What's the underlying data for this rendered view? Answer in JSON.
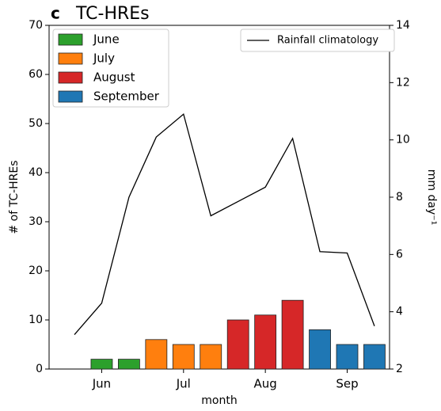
{
  "chart_data": {
    "type": "bar",
    "panel_label": "c",
    "title": "TC-HREs",
    "x_label": "month",
    "y_label": "# of TC-HREs",
    "y2_label": "mm day⁻¹",
    "categories": [
      null,
      "Jun",
      null,
      null,
      "Jul",
      null,
      null,
      "Aug",
      null,
      null,
      "Sep",
      null
    ],
    "series": [
      {
        "name": "June",
        "type": "bar",
        "color": "#2ca02c",
        "values": [
          null,
          2,
          2,
          null,
          null,
          null,
          null,
          null,
          null,
          null,
          null,
          null
        ]
      },
      {
        "name": "July",
        "type": "bar",
        "color": "#ff7f0e",
        "values": [
          null,
          null,
          null,
          6,
          5,
          5,
          null,
          null,
          null,
          null,
          null,
          null
        ]
      },
      {
        "name": "August",
        "type": "bar",
        "color": "#d62728",
        "values": [
          null,
          null,
          null,
          null,
          null,
          null,
          10,
          11,
          14,
          null,
          null,
          null
        ]
      },
      {
        "name": "September",
        "type": "bar",
        "color": "#1f77b4",
        "values": [
          null,
          null,
          null,
          null,
          null,
          null,
          null,
          null,
          null,
          8,
          5,
          5
        ]
      },
      {
        "name": "Rainfall climatology",
        "type": "line",
        "axis": "y2",
        "color": "#000000",
        "values": [
          3.2,
          4.3,
          8.0,
          10.1,
          10.9,
          7.35,
          7.85,
          8.35,
          10.05,
          6.1,
          6.05,
          3.5
        ]
      }
    ],
    "ylim": [
      0,
      70
    ],
    "yticks": [
      0,
      10,
      20,
      30,
      40,
      50,
      60,
      70
    ],
    "y2lim": [
      2,
      14
    ],
    "y2ticks": [
      2,
      4,
      6,
      8,
      10,
      12,
      14
    ]
  }
}
